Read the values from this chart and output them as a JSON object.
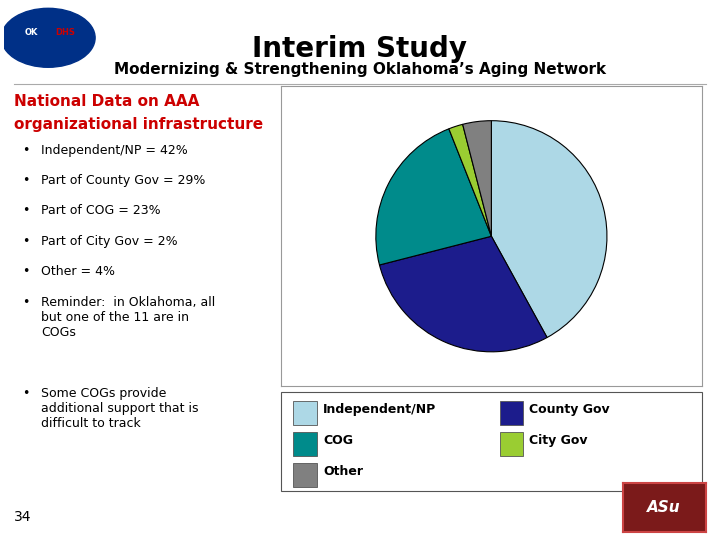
{
  "title": "Interim Study",
  "subtitle": "Modernizing & Strengthening Oklahoma’s Aging Network",
  "heading_line1": "National Data on AAA",
  "heading_line2": "organizational infrastructure",
  "bullets": [
    "Independent/NP = 42%",
    "Part of County Gov = 29%",
    "Part of COG = 23%",
    "Part of City Gov = 2%",
    "Other = 4%",
    "Reminder:  in Oklahoma, all\nbut one of the 11 are in\nCOGs",
    "Some COGs provide\nadditional support that is\ndifficult to track"
  ],
  "pie_values": [
    42,
    29,
    23,
    2,
    4
  ],
  "pie_colors": [
    "#add8e6",
    "#1c1c8c",
    "#008b8b",
    "#9acd32",
    "#808080"
  ],
  "legend_items": [
    [
      "Independent/NP",
      "#add8e6"
    ],
    [
      "County Gov",
      "#1c1c8c"
    ],
    [
      "COG",
      "#008b8b"
    ],
    [
      "City Gov",
      "#9acd32"
    ],
    [
      "Other",
      "#808080"
    ]
  ],
  "bg_color": "#ffffff",
  "title_fontsize": 20,
  "subtitle_fontsize": 11,
  "heading_color": "#cc0000",
  "heading_fontsize": 11,
  "bullet_fontsize": 9,
  "legend_fontsize": 9,
  "page_number": "34"
}
